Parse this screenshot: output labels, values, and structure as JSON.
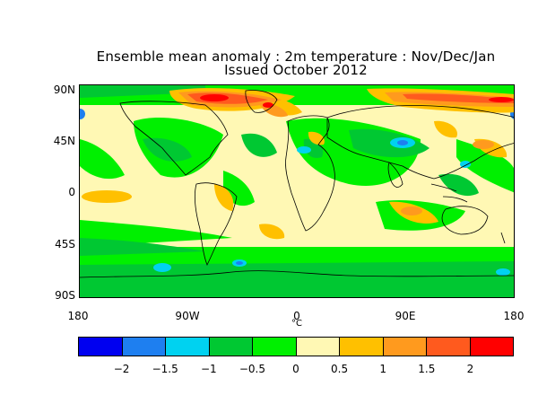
{
  "title": {
    "line1": "Ensemble mean anomaly : 2m temperature : Nov/Dec/Jan",
    "line2": "Issued October 2012"
  },
  "map": {
    "y_ticks": [
      "90N",
      "45N",
      "0",
      "45S",
      "90S"
    ],
    "x_ticks": [
      "180",
      "90W",
      "0",
      "90E",
      "180"
    ],
    "unit": "°C",
    "palette": {
      "lt_neg2": "#0000f0",
      "neg2_neg1_5": "#1e7ff0",
      "neg1_5_neg1": "#00d2f0",
      "neg1_neg0_5": "#00c832",
      "neg0_5_0": "#00f000",
      "0_0_5": "#fff8b4",
      "0_5_1": "#ffc000",
      "1_1_5": "#ff9a1e",
      "1_5_2": "#ff5a1e",
      "gt_2": "#ff0000"
    }
  },
  "colorbar": {
    "colors": [
      "#0000f0",
      "#1e7ff0",
      "#00d2f0",
      "#00c832",
      "#00f000",
      "#fff8b4",
      "#ffc000",
      "#ff9a1e",
      "#ff5a1e",
      "#ff0000"
    ],
    "labels": [
      "−2",
      "−1.5",
      "−1",
      "−0.5",
      "0",
      "0.5",
      "1",
      "1.5",
      "2"
    ]
  }
}
